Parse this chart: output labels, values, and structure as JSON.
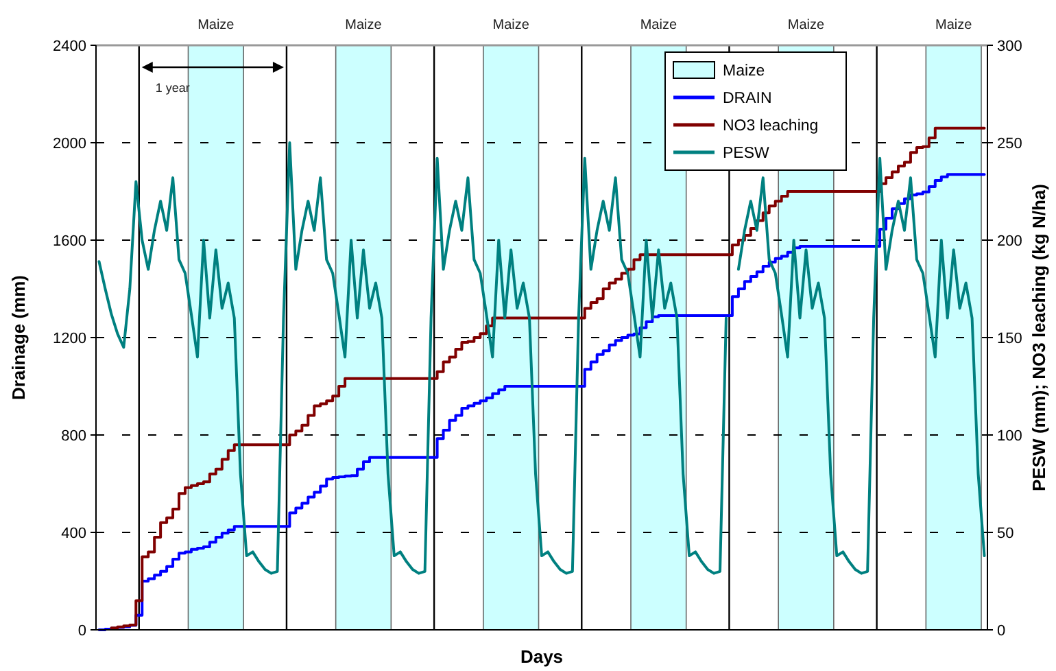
{
  "chart_data": {
    "type": "line",
    "xlabel": "Days",
    "ylabel": "Drainage (mm)",
    "y2label": "PESW (mm); NO3 leaching (kg N/ha)",
    "categories": [
      null,
      null,
      null,
      null,
      null,
      null,
      null,
      null,
      null,
      null,
      null,
      null,
      null,
      null,
      null,
      null,
      null,
      null,
      null,
      null,
      null,
      null,
      null,
      null,
      null,
      null,
      null,
      null,
      null,
      null,
      null,
      null,
      null,
      null,
      null,
      null,
      null,
      null,
      null,
      null,
      null,
      null,
      null,
      null,
      null,
      null,
      null,
      null,
      null,
      null,
      null,
      null,
      null,
      null,
      null,
      null,
      null,
      null,
      null,
      null,
      null,
      null,
      null,
      null,
      null,
      null,
      null,
      null,
      null,
      null,
      null,
      null,
      null,
      null,
      null,
      null,
      null,
      null,
      null,
      null,
      null,
      null,
      null,
      null,
      null,
      null,
      null,
      null,
      null,
      null,
      null,
      null,
      null,
      null,
      null,
      null,
      null,
      null,
      null,
      null,
      null,
      null,
      null,
      null,
      null,
      null,
      null,
      null,
      null,
      null,
      null,
      null,
      null,
      null,
      null,
      null,
      null,
      null,
      null,
      null,
      null,
      null,
      null,
      null,
      null,
      null,
      null,
      null,
      null,
      null,
      null,
      null,
      null,
      null,
      null,
      null,
      null,
      null,
      null,
      null,
      null,
      null,
      null,
      null,
      null
    ],
    "ylim": [
      0,
      2400
    ],
    "yticks": [
      0,
      400,
      800,
      1200,
      1600,
      2000,
      2400
    ],
    "y2lim": [
      0,
      300
    ],
    "y2ticks": [
      0,
      50,
      100,
      150,
      200,
      250,
      300
    ],
    "grid": "y",
    "legend": "top right",
    "annotations": [
      "Maize",
      "Maize",
      "Maize",
      "Maize",
      "Maize",
      "Maize",
      "1 year"
    ],
    "series": [
      {
        "name": "Maize",
        "type": "bar",
        "color": "#ccffff",
        "values": [
          null,
          null,
          null,
          null,
          null,
          null,
          null,
          null,
          null,
          null,
          null,
          null,
          null,
          null,
          null,
          null,
          null,
          null,
          null,
          null,
          null,
          null,
          null,
          null,
          null,
          null,
          null,
          null,
          null,
          null,
          null,
          null,
          null,
          null,
          null,
          null,
          null,
          null,
          null,
          null,
          null,
          null,
          null,
          null,
          null,
          null,
          null,
          null,
          null,
          null,
          null,
          null,
          null,
          null,
          null,
          null,
          null,
          null,
          null,
          null,
          null,
          null,
          null,
          null,
          null,
          null,
          null,
          null,
          null,
          null,
          null,
          null,
          null,
          null,
          null,
          null,
          null,
          null,
          null,
          null,
          null,
          null,
          null,
          null,
          null,
          null,
          null,
          null,
          null,
          null,
          null,
          null,
          null,
          null,
          null,
          null,
          null,
          null,
          null,
          null,
          null,
          null,
          null,
          null,
          null,
          null,
          null,
          null,
          null,
          null,
          null,
          null,
          null,
          null,
          null,
          null,
          null,
          null,
          null,
          null,
          null,
          null,
          null,
          null,
          null,
          null,
          null,
          null,
          null,
          null,
          null,
          null,
          null,
          null,
          null,
          null,
          null,
          null,
          null,
          null,
          null,
          null,
          null,
          null,
          null
        ]
      },
      {
        "name": "DRAIN",
        "type": "step",
        "color": "#0000ff",
        "values": [
          0,
          3,
          6,
          10,
          13,
          18,
          60,
          200,
          210,
          225,
          240,
          260,
          290,
          315,
          320,
          330,
          335,
          341,
          360,
          380,
          397,
          410,
          425,
          425,
          425,
          425,
          425,
          425,
          425,
          425,
          425,
          480,
          500,
          520,
          545,
          565,
          590,
          619,
          625,
          628,
          632,
          633,
          660,
          690,
          708,
          708,
          708,
          708,
          708,
          708,
          708,
          708,
          708,
          708,
          708,
          785,
          820,
          860,
          880,
          910,
          920,
          930,
          940,
          952,
          970,
          985,
          1000,
          1000,
          1000,
          1000,
          1000,
          1000,
          1000,
          1000,
          1000,
          1000,
          1000,
          1000,
          1000,
          1070,
          1100,
          1130,
          1146,
          1170,
          1188,
          1200,
          1210,
          1215,
          1240,
          1265,
          1285,
          1290,
          1290,
          1290,
          1290,
          1290,
          1290,
          1290,
          1290,
          1290,
          1290,
          1290,
          1290,
          1368,
          1400,
          1430,
          1451,
          1470,
          1493,
          1510,
          1525,
          1534,
          1550,
          1568,
          1575,
          1575,
          1575,
          1575,
          1575,
          1575,
          1575,
          1575,
          1575,
          1575,
          1575,
          1575,
          1575,
          1645,
          1690,
          1729,
          1750,
          1770,
          1785,
          1790,
          1798,
          1820,
          1845,
          1860,
          1870,
          1870,
          1870,
          1870,
          1870,
          1870,
          1870
        ]
      },
      {
        "name": "NO3 leaching",
        "type": "step",
        "axis": "y2",
        "color": "#800000",
        "values": [
          null,
          null,
          1,
          1.5,
          2,
          2.5,
          15,
          37.5,
          40,
          47.5,
          55,
          57.5,
          62,
          70,
          73,
          74,
          75,
          76,
          80,
          82.5,
          87.5,
          92,
          95,
          95,
          95,
          95,
          95,
          95,
          95,
          95,
          95,
          100,
          102,
          105,
          110,
          115,
          116,
          117.5,
          120,
          125,
          129,
          129,
          129,
          129,
          129,
          129,
          129,
          129,
          129,
          129,
          129,
          129,
          129,
          129,
          129,
          132.5,
          137.5,
          140,
          144,
          147.5,
          148,
          150,
          152,
          156,
          160,
          160,
          160,
          160,
          160,
          160,
          160,
          160,
          160,
          160,
          160,
          160,
          160,
          160,
          160,
          165,
          168,
          170,
          175,
          178,
          180,
          183,
          185,
          190,
          192.5,
          192.5,
          192.5,
          192.5,
          192.5,
          192.5,
          192.5,
          192.5,
          192.5,
          192.5,
          192.5,
          192.5,
          192.5,
          192.5,
          192.5,
          197.5,
          200,
          202.5,
          206,
          210,
          214,
          217.5,
          220,
          222.5,
          225,
          225,
          225,
          225,
          225,
          225,
          225,
          225,
          225,
          225,
          225,
          225,
          225,
          225,
          225,
          229,
          232,
          235,
          238,
          240,
          245,
          247.5,
          248,
          252.5,
          257.5,
          257.5,
          257.5,
          257.5,
          257.5,
          257.5,
          257.5,
          257.5,
          257.5
        ]
      },
      {
        "name": "PESW",
        "axis": "y2",
        "color": "#008080",
        "values": [
          189,
          175,
          162,
          152,
          145,
          175,
          230,
          200,
          185,
          205,
          220,
          205,
          232,
          190,
          183,
          162,
          140,
          200,
          160,
          195,
          165,
          178,
          160,
          80,
          38,
          40,
          35,
          31,
          29,
          30,
          160,
          250,
          185,
          205,
          220,
          205,
          232,
          190,
          183,
          162,
          140,
          200,
          160,
          195,
          165,
          178,
          160,
          80,
          38,
          40,
          35,
          31,
          29,
          30,
          160,
          242,
          185,
          205,
          220,
          205,
          232,
          190,
          183,
          162,
          140,
          200,
          160,
          195,
          165,
          178,
          160,
          80,
          38,
          40,
          35,
          31,
          29,
          30,
          160,
          242,
          185,
          205,
          220,
          205,
          232,
          190,
          183,
          162,
          140,
          200,
          160,
          195,
          165,
          178,
          160,
          80,
          38,
          40,
          35,
          31,
          29,
          30,
          160,
          null,
          185,
          205,
          220,
          205,
          232,
          190,
          183,
          162,
          140,
          200,
          160,
          195,
          165,
          178,
          160,
          80,
          38,
          40,
          35,
          31,
          29,
          30,
          160,
          242,
          185,
          205,
          220,
          205,
          232,
          190,
          183,
          162,
          140,
          200,
          160,
          195,
          165,
          178,
          160,
          80,
          38
        ]
      }
    ]
  }
}
